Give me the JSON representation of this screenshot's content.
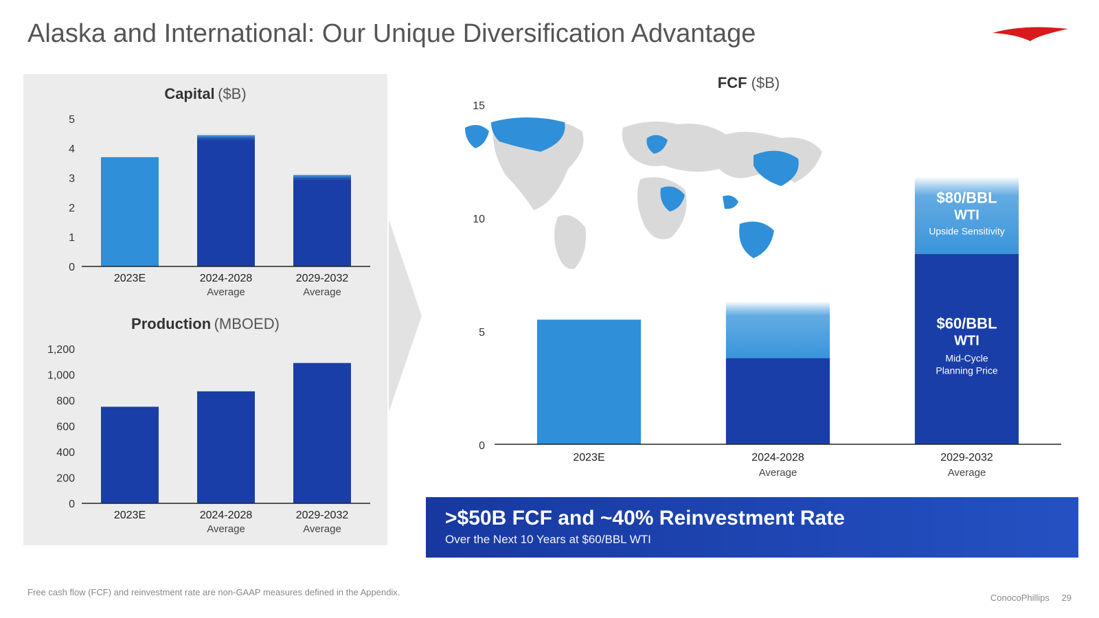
{
  "slide": {
    "title": "Alaska and International: Our Unique Diversification Advantage",
    "footnote": "Free cash flow (FCF) and reinvestment rate are non-GAAP measures defined in the Appendix.",
    "company": "ConocoPhillips",
    "page": "29",
    "logo_color": "#d91a1a"
  },
  "colors": {
    "bar_light": "#2f8fd9",
    "bar_dark": "#1a3ea8",
    "map_land": "#d9d9d9",
    "map_highlight": "#2f8fd9",
    "banner_from": "#1838a0",
    "banner_to": "#2451c2",
    "bg_panel": "#ececec"
  },
  "capital_chart": {
    "title_main": "Capital",
    "title_unit": "($B)",
    "type": "bar",
    "ylim": [
      0,
      5
    ],
    "ytick_step": 1,
    "yticks": [
      "0",
      "1",
      "2",
      "3",
      "4",
      "5"
    ],
    "categories": [
      {
        "line1": "2023E",
        "line2": ""
      },
      {
        "line1": "2024-2028",
        "line2": "Average"
      },
      {
        "line1": "2029-2032",
        "line2": "Average"
      }
    ],
    "series": [
      {
        "base": 3.7,
        "top": 3.7,
        "color": "#2f8fd9"
      },
      {
        "base": 4.3,
        "top": 4.45,
        "color": "#1a3ea8"
      },
      {
        "base": 2.95,
        "top": 3.1,
        "color": "#1a3ea8"
      }
    ],
    "bar_width": 0.6
  },
  "production_chart": {
    "title_main": "Production",
    "title_unit": "(MBOED)",
    "type": "bar",
    "ylim": [
      0,
      1200
    ],
    "ytick_step": 200,
    "yticks": [
      "0",
      "200",
      "400",
      "600",
      "800",
      "1,000",
      "1,200"
    ],
    "categories": [
      {
        "line1": "2023E",
        "line2": ""
      },
      {
        "line1": "2024-2028",
        "line2": "Average"
      },
      {
        "line1": "2029-2032",
        "line2": "Average"
      }
    ],
    "series": [
      {
        "value": 750,
        "color": "#1a3ea8"
      },
      {
        "value": 870,
        "color": "#1a3ea8"
      },
      {
        "value": 1090,
        "color": "#1a3ea8"
      }
    ],
    "bar_width": 0.6
  },
  "fcf_chart": {
    "title_main": "FCF",
    "title_unit": "($B)",
    "type": "stacked-bar",
    "ylim": [
      0,
      15
    ],
    "ytick_step": 5,
    "yticks": [
      "0",
      "5",
      "10",
      "15"
    ],
    "categories": [
      {
        "line1": "2023E",
        "line2": ""
      },
      {
        "line1": "2024-2028",
        "line2": "Average"
      },
      {
        "line1": "2029-2032",
        "line2": "Average"
      }
    ],
    "series": [
      {
        "base": 5.5,
        "top": 5.5,
        "base_color": "#2f8fd9"
      },
      {
        "base": 3.8,
        "top": 6.3,
        "base_color": "#1a3ea8"
      },
      {
        "base": 8.4,
        "top": 11.8,
        "base_color": "#1a3ea8"
      }
    ],
    "overlays": {
      "upper": {
        "l1": "$80/BBL",
        "l2": "WTI",
        "l3": "Upside Sensitivity"
      },
      "lower": {
        "l1": "$60/BBL",
        "l2": "WTI",
        "l3": "Mid-Cycle",
        "l4": "Planning Price"
      }
    },
    "bar_width": 0.55
  },
  "banner": {
    "main": ">$50B FCF and ~40% Reinvestment Rate",
    "sub": "Over the Next 10 Years at $60/BBL WTI"
  }
}
